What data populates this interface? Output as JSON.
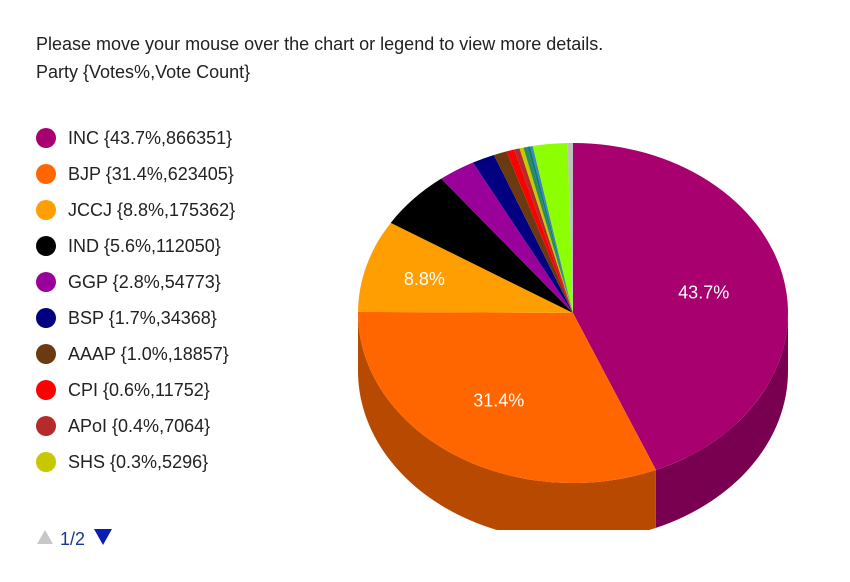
{
  "hint_text": "Please move your mouse over the chart or legend to view more details.",
  "subtitle": "Party {Votes%,Vote Count}",
  "pager": {
    "text": "1/2",
    "up_icon": "triangle-up-icon",
    "down_icon": "triangle-down-icon",
    "up_color": "#c8c8c8",
    "down_color": "#0a1eb4"
  },
  "legend": [
    {
      "label": "INC {43.7%,866351}",
      "color": "#a8006f"
    },
    {
      "label": "BJP {31.4%,623405}",
      "color": "#ff6600"
    },
    {
      "label": "JCCJ {8.8%,175362}",
      "color": "#ff9e00"
    },
    {
      "label": "IND {5.6%,112050}",
      "color": "#000000"
    },
    {
      "label": "GGP {2.8%,54773}",
      "color": "#9a009a"
    },
    {
      "label": "BSP {1.7%,34368}",
      "color": "#000080"
    },
    {
      "label": "AAAP {1.0%,18857}",
      "color": "#6b3a10"
    },
    {
      "label": "CPI {0.6%,11752}",
      "color": "#ff0000"
    },
    {
      "label": "APoI {0.4%,7064}",
      "color": "#b52a2a"
    },
    {
      "label": "SHS {0.3%,5296}",
      "color": "#c8c800"
    }
  ],
  "chart_data": {
    "type": "pie",
    "style": "3d",
    "slices": [
      {
        "name": "INC",
        "percent": 43.7,
        "votes": 866351,
        "color": "#a8006f",
        "label": "43.7%"
      },
      {
        "name": "BJP",
        "percent": 31.4,
        "votes": 623405,
        "color": "#ff6600",
        "label": "31.4%"
      },
      {
        "name": "JCCJ",
        "percent": 8.8,
        "votes": 175362,
        "color": "#ff9e00",
        "label": "8.8%"
      },
      {
        "name": "IND",
        "percent": 5.6,
        "votes": 112050,
        "color": "#000000"
      },
      {
        "name": "GGP",
        "percent": 2.8,
        "votes": 54773,
        "color": "#9a009a"
      },
      {
        "name": "BSP",
        "percent": 1.7,
        "votes": 34368,
        "color": "#000080"
      },
      {
        "name": "AAAP",
        "percent": 1.0,
        "votes": 18857,
        "color": "#6b3a10"
      },
      {
        "name": "CPI",
        "percent": 0.6,
        "votes": 11752,
        "color": "#ff0000"
      },
      {
        "name": "APoI",
        "percent": 0.4,
        "votes": 7064,
        "color": "#b52a2a"
      },
      {
        "name": "SHS",
        "percent": 0.3,
        "votes": 5296,
        "color": "#c8c800"
      },
      {
        "percent": 0.3,
        "color": "#2e8b57"
      },
      {
        "percent": 0.2,
        "color": "#008080"
      },
      {
        "percent": 0.2,
        "color": "#4682b4"
      },
      {
        "percent": 2.6,
        "color": "#8cff00"
      },
      {
        "percent": 0.4,
        "color": "#c0c0c0"
      }
    ]
  }
}
